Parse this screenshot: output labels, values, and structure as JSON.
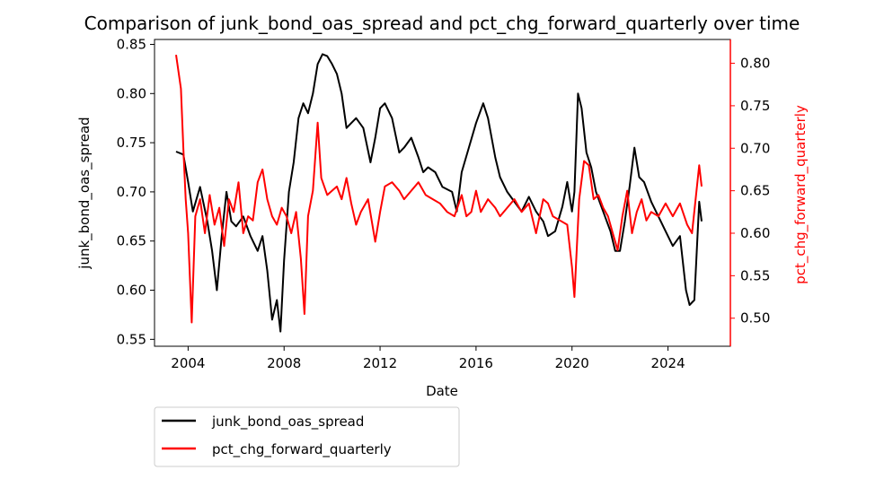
{
  "chart_data": {
    "type": "line",
    "title": "Comparison of junk_bond_oas_spread and pct_chg_forward_quarterly over time",
    "xlabel": "Date",
    "ylabel_left": "junk_bond_oas_spread",
    "ylabel_right": "pct_chg_forward_quarterly",
    "xlim": [
      2002.6,
      2026.6
    ],
    "ylim_left": [
      0.543,
      0.855
    ],
    "ylim_right": [
      0.467,
      0.828
    ],
    "x_ticks": [
      2004,
      2008,
      2012,
      2016,
      2020,
      2024
    ],
    "x_tick_labels": [
      "2004",
      "2008",
      "2012",
      "2016",
      "2020",
      "2024"
    ],
    "y_left_ticks": [
      0.55,
      0.6,
      0.65,
      0.7,
      0.75,
      0.8,
      0.85
    ],
    "y_left_tick_labels": [
      "0.55",
      "0.60",
      "0.65",
      "0.70",
      "0.75",
      "0.80",
      "0.85"
    ],
    "y_right_ticks": [
      0.5,
      0.55,
      0.6,
      0.65,
      0.7,
      0.75,
      0.8
    ],
    "y_right_tick_labels": [
      "0.50",
      "0.55",
      "0.60",
      "0.65",
      "0.70",
      "0.75",
      "0.80"
    ],
    "grid": false,
    "legend_position": "below-left",
    "series": [
      {
        "name": "junk_bond_oas_spread",
        "axis": "left",
        "color": "#000000",
        "points": [
          [
            2003.5,
            0.741
          ],
          [
            2003.8,
            0.738
          ],
          [
            2004.0,
            0.71
          ],
          [
            2004.2,
            0.68
          ],
          [
            2004.5,
            0.705
          ],
          [
            2004.8,
            0.67
          ],
          [
            2005.0,
            0.64
          ],
          [
            2005.2,
            0.6
          ],
          [
            2005.4,
            0.655
          ],
          [
            2005.6,
            0.7
          ],
          [
            2005.8,
            0.67
          ],
          [
            2006.0,
            0.665
          ],
          [
            2006.3,
            0.675
          ],
          [
            2006.6,
            0.655
          ],
          [
            2006.9,
            0.64
          ],
          [
            2007.1,
            0.655
          ],
          [
            2007.3,
            0.62
          ],
          [
            2007.5,
            0.57
          ],
          [
            2007.7,
            0.59
          ],
          [
            2007.85,
            0.558
          ],
          [
            2008.0,
            0.63
          ],
          [
            2008.2,
            0.7
          ],
          [
            2008.4,
            0.73
          ],
          [
            2008.6,
            0.775
          ],
          [
            2008.8,
            0.79
          ],
          [
            2009.0,
            0.78
          ],
          [
            2009.2,
            0.8
          ],
          [
            2009.4,
            0.83
          ],
          [
            2009.6,
            0.84
          ],
          [
            2009.8,
            0.838
          ],
          [
            2010.0,
            0.83
          ],
          [
            2010.2,
            0.82
          ],
          [
            2010.4,
            0.8
          ],
          [
            2010.6,
            0.765
          ],
          [
            2010.8,
            0.77
          ],
          [
            2011.0,
            0.775
          ],
          [
            2011.3,
            0.765
          ],
          [
            2011.6,
            0.73
          ],
          [
            2011.8,
            0.755
          ],
          [
            2012.0,
            0.785
          ],
          [
            2012.2,
            0.79
          ],
          [
            2012.5,
            0.775
          ],
          [
            2012.8,
            0.74
          ],
          [
            2013.0,
            0.745
          ],
          [
            2013.3,
            0.755
          ],
          [
            2013.6,
            0.735
          ],
          [
            2013.8,
            0.72
          ],
          [
            2014.0,
            0.725
          ],
          [
            2014.3,
            0.72
          ],
          [
            2014.6,
            0.705
          ],
          [
            2015.0,
            0.7
          ],
          [
            2015.2,
            0.68
          ],
          [
            2015.4,
            0.72
          ],
          [
            2015.7,
            0.745
          ],
          [
            2016.0,
            0.77
          ],
          [
            2016.3,
            0.79
          ],
          [
            2016.5,
            0.775
          ],
          [
            2016.8,
            0.735
          ],
          [
            2017.0,
            0.715
          ],
          [
            2017.3,
            0.7
          ],
          [
            2017.6,
            0.69
          ],
          [
            2017.9,
            0.68
          ],
          [
            2018.2,
            0.695
          ],
          [
            2018.5,
            0.68
          ],
          [
            2018.8,
            0.67
          ],
          [
            2019.0,
            0.655
          ],
          [
            2019.3,
            0.66
          ],
          [
            2019.6,
            0.685
          ],
          [
            2019.8,
            0.71
          ],
          [
            2020.0,
            0.68
          ],
          [
            2020.1,
            0.7
          ],
          [
            2020.25,
            0.8
          ],
          [
            2020.4,
            0.785
          ],
          [
            2020.6,
            0.74
          ],
          [
            2020.8,
            0.725
          ],
          [
            2021.0,
            0.7
          ],
          [
            2021.3,
            0.68
          ],
          [
            2021.6,
            0.66
          ],
          [
            2021.8,
            0.64
          ],
          [
            2022.0,
            0.64
          ],
          [
            2022.2,
            0.67
          ],
          [
            2022.4,
            0.705
          ],
          [
            2022.6,
            0.745
          ],
          [
            2022.8,
            0.715
          ],
          [
            2023.0,
            0.71
          ],
          [
            2023.3,
            0.69
          ],
          [
            2023.6,
            0.675
          ],
          [
            2023.9,
            0.66
          ],
          [
            2024.2,
            0.645
          ],
          [
            2024.5,
            0.655
          ],
          [
            2024.75,
            0.6
          ],
          [
            2024.9,
            0.585
          ],
          [
            2025.1,
            0.59
          ],
          [
            2025.2,
            0.64
          ],
          [
            2025.3,
            0.69
          ],
          [
            2025.4,
            0.67
          ]
        ]
      },
      {
        "name": "pct_chg_forward_quarterly",
        "axis": "right",
        "color": "#ff0000",
        "points": [
          [
            2003.5,
            0.81
          ],
          [
            2003.7,
            0.77
          ],
          [
            2003.8,
            0.7
          ],
          [
            2003.9,
            0.64
          ],
          [
            2004.0,
            0.6
          ],
          [
            2004.15,
            0.495
          ],
          [
            2004.3,
            0.62
          ],
          [
            2004.5,
            0.64
          ],
          [
            2004.7,
            0.6
          ],
          [
            2004.9,
            0.645
          ],
          [
            2005.1,
            0.61
          ],
          [
            2005.3,
            0.63
          ],
          [
            2005.5,
            0.585
          ],
          [
            2005.7,
            0.64
          ],
          [
            2005.9,
            0.625
          ],
          [
            2006.1,
            0.66
          ],
          [
            2006.3,
            0.6
          ],
          [
            2006.5,
            0.62
          ],
          [
            2006.7,
            0.615
          ],
          [
            2006.9,
            0.66
          ],
          [
            2007.1,
            0.675
          ],
          [
            2007.3,
            0.64
          ],
          [
            2007.5,
            0.62
          ],
          [
            2007.7,
            0.61
          ],
          [
            2007.9,
            0.63
          ],
          [
            2008.1,
            0.62
          ],
          [
            2008.3,
            0.6
          ],
          [
            2008.5,
            0.625
          ],
          [
            2008.7,
            0.57
          ],
          [
            2008.85,
            0.505
          ],
          [
            2009.0,
            0.62
          ],
          [
            2009.2,
            0.65
          ],
          [
            2009.4,
            0.73
          ],
          [
            2009.55,
            0.665
          ],
          [
            2009.8,
            0.645
          ],
          [
            2010.0,
            0.65
          ],
          [
            2010.2,
            0.655
          ],
          [
            2010.4,
            0.64
          ],
          [
            2010.6,
            0.665
          ],
          [
            2010.8,
            0.635
          ],
          [
            2011.0,
            0.61
          ],
          [
            2011.2,
            0.625
          ],
          [
            2011.5,
            0.64
          ],
          [
            2011.8,
            0.59
          ],
          [
            2012.0,
            0.625
          ],
          [
            2012.2,
            0.655
          ],
          [
            2012.5,
            0.66
          ],
          [
            2012.8,
            0.65
          ],
          [
            2013.0,
            0.64
          ],
          [
            2013.3,
            0.65
          ],
          [
            2013.6,
            0.66
          ],
          [
            2013.9,
            0.645
          ],
          [
            2014.2,
            0.64
          ],
          [
            2014.5,
            0.635
          ],
          [
            2014.8,
            0.625
          ],
          [
            2015.1,
            0.62
          ],
          [
            2015.4,
            0.645
          ],
          [
            2015.6,
            0.62
          ],
          [
            2015.8,
            0.625
          ],
          [
            2016.0,
            0.65
          ],
          [
            2016.2,
            0.625
          ],
          [
            2016.5,
            0.64
          ],
          [
            2016.8,
            0.63
          ],
          [
            2017.0,
            0.62
          ],
          [
            2017.3,
            0.63
          ],
          [
            2017.6,
            0.64
          ],
          [
            2017.9,
            0.625
          ],
          [
            2018.2,
            0.635
          ],
          [
            2018.5,
            0.6
          ],
          [
            2018.8,
            0.64
          ],
          [
            2019.0,
            0.635
          ],
          [
            2019.2,
            0.62
          ],
          [
            2019.5,
            0.615
          ],
          [
            2019.8,
            0.61
          ],
          [
            2020.0,
            0.56
          ],
          [
            2020.1,
            0.525
          ],
          [
            2020.3,
            0.64
          ],
          [
            2020.5,
            0.685
          ],
          [
            2020.7,
            0.68
          ],
          [
            2020.9,
            0.64
          ],
          [
            2021.1,
            0.645
          ],
          [
            2021.3,
            0.63
          ],
          [
            2021.5,
            0.62
          ],
          [
            2021.7,
            0.6
          ],
          [
            2021.9,
            0.58
          ],
          [
            2022.1,
            0.62
          ],
          [
            2022.3,
            0.65
          ],
          [
            2022.5,
            0.6
          ],
          [
            2022.7,
            0.625
          ],
          [
            2022.9,
            0.64
          ],
          [
            2023.1,
            0.615
          ],
          [
            2023.3,
            0.625
          ],
          [
            2023.6,
            0.62
          ],
          [
            2023.9,
            0.635
          ],
          [
            2024.2,
            0.62
          ],
          [
            2024.5,
            0.635
          ],
          [
            2024.8,
            0.61
          ],
          [
            2025.0,
            0.6
          ],
          [
            2025.15,
            0.64
          ],
          [
            2025.3,
            0.68
          ],
          [
            2025.4,
            0.655
          ]
        ]
      }
    ]
  }
}
